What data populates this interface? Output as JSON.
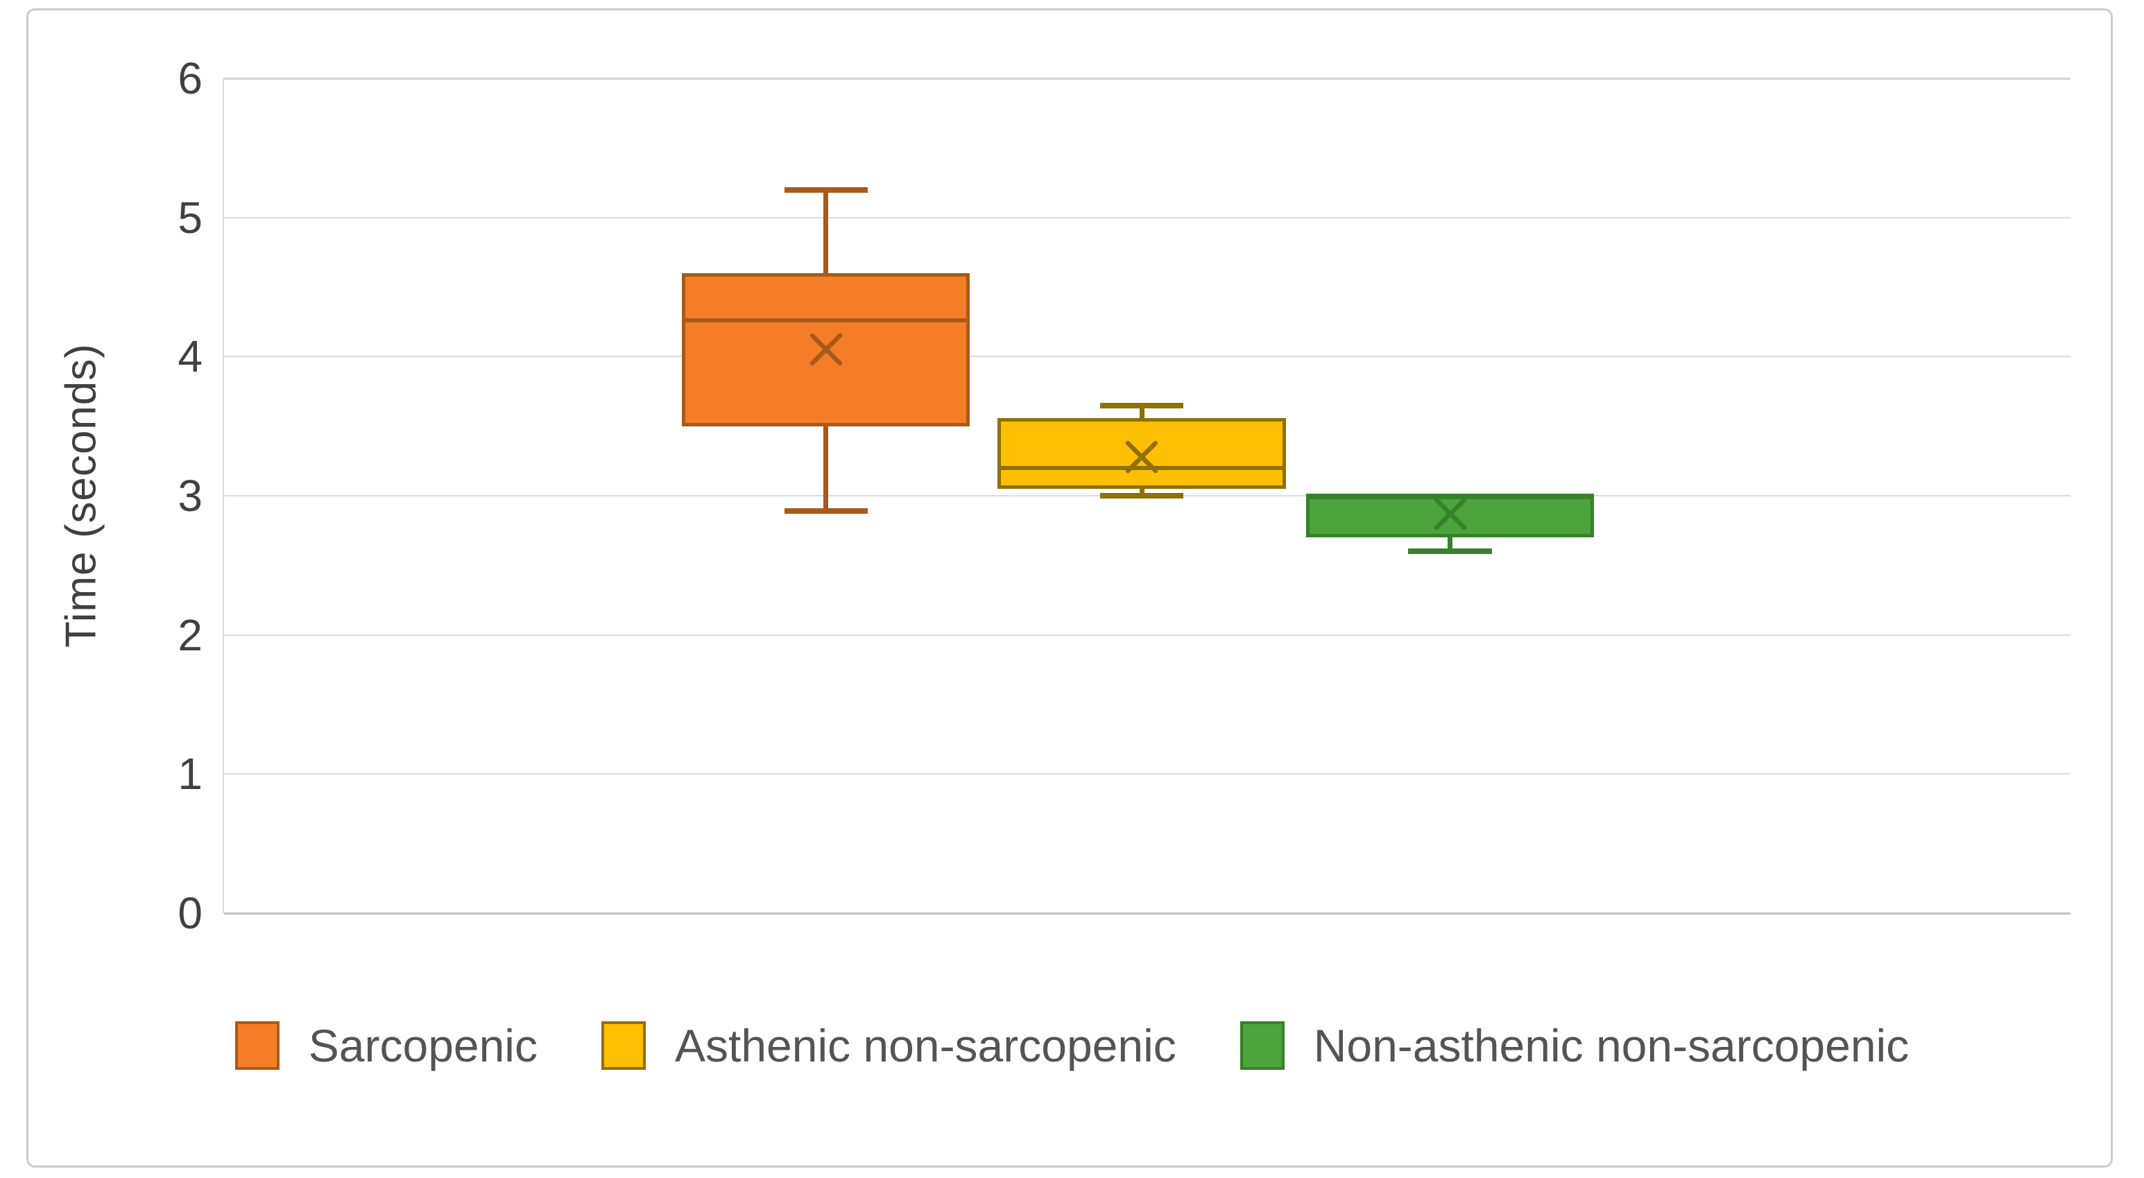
{
  "figure": {
    "background_color": "#ffffff",
    "frame_border_color": "#cccccc"
  },
  "chart_data": {
    "type": "boxplot",
    "title": "",
    "xlabel": "",
    "ylabel": "Time (seconds)",
    "ylim": [
      0,
      6
    ],
    "yticks": [
      0,
      1,
      2,
      3,
      4,
      5,
      6
    ],
    "grid": true,
    "gridline_color": "#dcdcdc",
    "axis_text_color": "#404040",
    "legend_position": "bottom",
    "legend_text_color": "#545454",
    "series": [
      {
        "name": "Sarcopenic",
        "min": 2.89,
        "q1": 3.5,
        "median": 4.26,
        "q3": 4.6,
        "max": 5.2,
        "mean": 4.05,
        "fill_color": "#F57D28",
        "line_color": "#A85A1B"
      },
      {
        "name": "Asthenic non-sarcopenic",
        "min": 3.0,
        "q1": 3.05,
        "median": 3.2,
        "q3": 3.56,
        "max": 3.65,
        "mean": 3.28,
        "fill_color": "#FFC003",
        "line_color": "#8F7000"
      },
      {
        "name": "Non-asthenic non-sarcopenic",
        "min": 2.6,
        "q1": 2.7,
        "median": 3.0,
        "q3": 3.0,
        "max": 3.0,
        "mean": 2.87,
        "fill_color": "#4BA43C",
        "line_color": "#37812B"
      }
    ],
    "layout": {
      "centers_frac": [
        0.326,
        0.497,
        0.664
      ],
      "box_width_frac": 0.156,
      "cap_width_frac_of_box": 0.29
    }
  }
}
